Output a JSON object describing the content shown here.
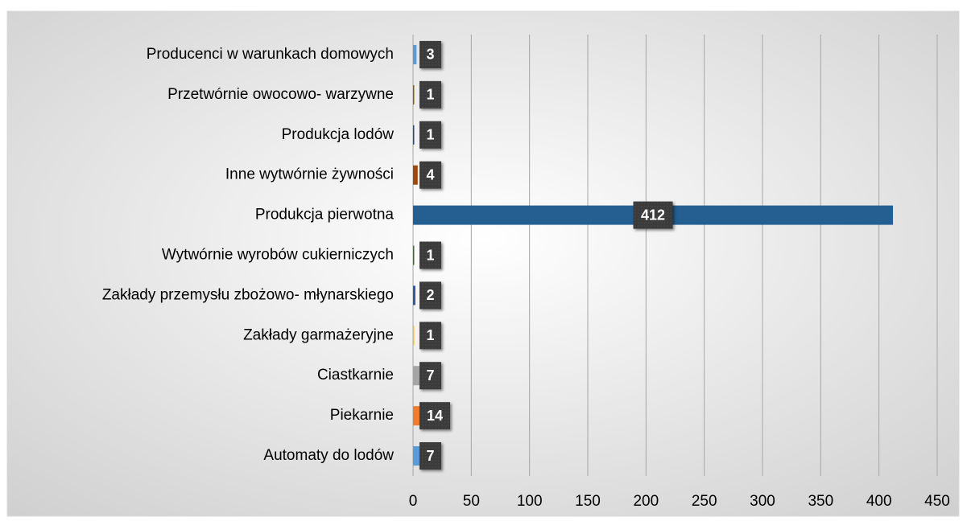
{
  "chart_data": {
    "type": "hbar",
    "categories": [
      "Producenci w warunkach domowych",
      "Przetwórnie owocowo- warzywne",
      "Produkcja lodów",
      "Inne wytwórnie żywności",
      "Produkcja pierwotna",
      "Wytwórnie wyrobów cukierniczych",
      "Zakłady przemysłu zbożowo- młynarskiego",
      "Zakłady garmażeryjne",
      "Ciastkarnie",
      "Piekarnie",
      "Automaty do lodów"
    ],
    "values": [
      3,
      1,
      1,
      4,
      412,
      1,
      2,
      1,
      7,
      14,
      7
    ],
    "colors": [
      "#5b9bd5",
      "#806000",
      "#264478",
      "#9e480e",
      "#255e91",
      "#43682b",
      "#2f5597",
      "#ffc000",
      "#a5a5a5",
      "#ed7d31",
      "#5b9bd5"
    ],
    "xlim": [
      0,
      450
    ],
    "xticks": [
      0,
      50,
      100,
      150,
      200,
      250,
      300,
      350,
      400,
      450
    ],
    "grid": true
  }
}
